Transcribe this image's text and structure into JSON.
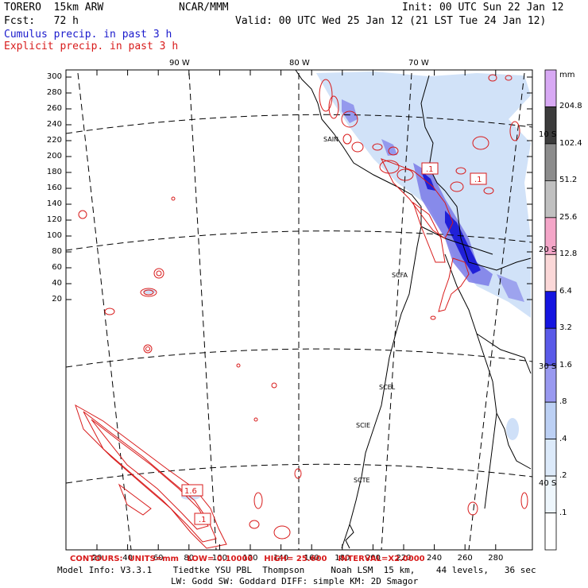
{
  "header": {
    "model": "TORERO  15km ARW",
    "center": "NCAR/MMM",
    "init": "Init: 00 UTC Sun 22 Jan 12",
    "fcst": "Fcst:   72 h",
    "valid": "Valid: 00 UTC Wed 25 Jan 12 (21 LST Tue 24 Jan 12)",
    "field1": "Cumulus precip. in past 3 h",
    "field2": "Explicit precip. in past 3 h"
  },
  "map": {
    "y_ticks": [
      "300",
      "280",
      "260",
      "240",
      "220",
      "200",
      "180",
      "160",
      "140",
      "120",
      "100",
      "80",
      "60",
      "40",
      "20"
    ],
    "x_ticks": [
      "20",
      "40",
      "60",
      "80",
      "100",
      "120",
      "140",
      "160",
      "180",
      "200",
      "220",
      "240",
      "260",
      "280"
    ],
    "lon_labels": [
      "90 W",
      "80 W",
      "70 W"
    ],
    "lat_labels": [
      "10 S",
      "20 S",
      "30 S",
      "40 S"
    ],
    "stations": [
      "SAIN",
      "SCFA",
      "SCEL",
      "SCIE",
      "SCTE"
    ],
    "contour_labels": [
      ".1",
      ".1",
      "1.6",
      ".1"
    ]
  },
  "colorbar": {
    "unit": "mm",
    "levels": [
      "204.8",
      "102.4",
      "51.2",
      "25.6",
      "12.8",
      "6.4",
      "3.2",
      "1.6",
      ".8",
      ".4",
      ".2",
      ".1"
    ],
    "colors": [
      "#d8a9f4",
      "#3c3c3c",
      "#8c8c8c",
      "#c0c0c0",
      "#f4a6c8",
      "#fbd8d8",
      "#1515e0",
      "#5a5ae8",
      "#9999f0",
      "#bcd0f4",
      "#dceafa",
      "#eef6fc",
      "#ffffff"
    ]
  },
  "footer": {
    "contours": "CONTOURS:  UNITS=mm   LOW= 0.10000    HIGH= 25.600    INTERVAL=X2.0000",
    "line1": "Model Info: V3.3.1    Tiedtke YSU PBL  Thompson     Noah LSM  15 km,    44 levels,   36 sec",
    "line2": "LW: Godd SW: Goddard DIFF: simple KM: 2D Smagor"
  }
}
